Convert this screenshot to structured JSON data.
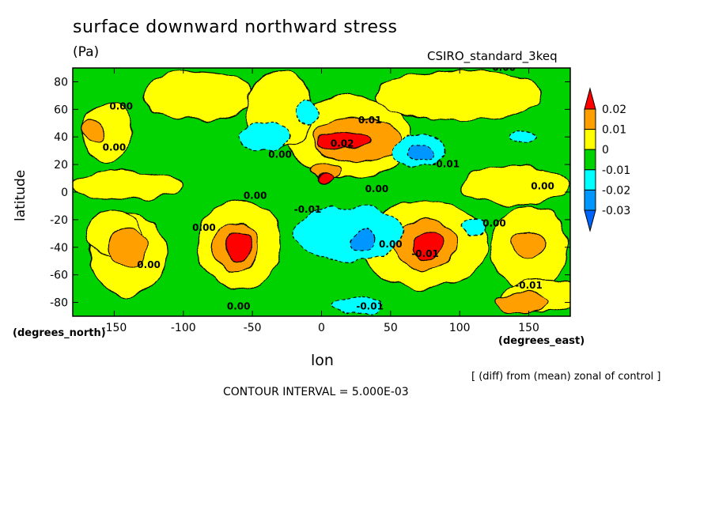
{
  "chart_data": {
    "type": "heatmap",
    "title": "surface downward northward stress",
    "units": "(Pa)",
    "dataset": "CSIRO_standard_3keq",
    "xlabel": "lon",
    "ylabel": "latitude",
    "xunits": "(degrees_east)",
    "yunits": "(degrees_north)",
    "note": "[ (diff) from (mean) zonal of control ]",
    "contour_interval": "CONTOUR INTERVAL = 5.000E-03",
    "xlim": [
      -180,
      180
    ],
    "ylim": [
      -90,
      90
    ],
    "xticks": [
      "-150",
      "-100",
      "-50",
      "0",
      "50",
      "100",
      "150"
    ],
    "xtick_values": [
      -150,
      -100,
      -50,
      0,
      50,
      100,
      150
    ],
    "yticks": [
      "-80",
      "-60",
      "-40",
      "-20",
      "0",
      "20",
      "40",
      "60",
      "80"
    ],
    "ytick_values": [
      -80,
      -60,
      -40,
      -20,
      0,
      20,
      40,
      60,
      80
    ],
    "colorbar": {
      "labels": [
        "0.02",
        "0.01",
        "0",
        "-0.01",
        "-0.02",
        "-0.03"
      ],
      "colors": [
        "#ff0000",
        "#ffa000",
        "#ffff00",
        "#00d200",
        "#00ffff",
        "#0096ff"
      ],
      "top_arrow": "#ff0000",
      "bottom_arrow": "#0064ff"
    },
    "background_color": "#00d200",
    "fields": [
      {
        "level": "0.005",
        "color": "#ffff00",
        "lon": -140,
        "lat": -45,
        "rx": 28,
        "ry": 30
      },
      {
        "level": "0.005",
        "color": "#ffff00",
        "lon": -150,
        "lat": -30,
        "rx": 20,
        "ry": 16
      },
      {
        "level": "0.005",
        "color": "#ffff00",
        "lon": -60,
        "lat": -38,
        "rx": 30,
        "ry": 32
      },
      {
        "level": "0.005",
        "color": "#ffff00",
        "lon": 20,
        "lat": 40,
        "rx": 45,
        "ry": 30
      },
      {
        "level": "0.005",
        "color": "#ffff00",
        "lon": 75,
        "lat": -38,
        "rx": 45,
        "ry": 32
      },
      {
        "level": "0.005",
        "color": "#ffff00",
        "lon": 150,
        "lat": -40,
        "rx": 28,
        "ry": 30
      },
      {
        "level": "0.005",
        "color": "#ffff00",
        "lon": -90,
        "lat": 70,
        "rx": 40,
        "ry": 18
      },
      {
        "level": "0.005",
        "color": "#ffff00",
        "lon": 100,
        "lat": 70,
        "rx": 60,
        "ry": 18
      },
      {
        "level": "0.005",
        "color": "#ffff00",
        "lon": -30,
        "lat": 60,
        "rx": 25,
        "ry": 28
      },
      {
        "level": "0.005",
        "color": "#ffff00",
        "lon": 140,
        "lat": 5,
        "rx": 40,
        "ry": 14
      },
      {
        "level": "0.005",
        "color": "#ffff00",
        "lon": -140,
        "lat": 5,
        "rx": 40,
        "ry": 10
      },
      {
        "level": "0.005",
        "color": "#ffff00",
        "lon": 160,
        "lat": -75,
        "rx": 30,
        "ry": 12
      },
      {
        "level": "0.005",
        "color": "#ffff00",
        "lon": -155,
        "lat": 43,
        "rx": 18,
        "ry": 22
      },
      {
        "level": "0.01",
        "color": "#ffa000",
        "lon": -140,
        "lat": -40,
        "rx": 14,
        "ry": 14
      },
      {
        "level": "0.01",
        "color": "#ffa000",
        "lon": -62,
        "lat": -40,
        "rx": 16,
        "ry": 18
      },
      {
        "level": "0.01",
        "color": "#ffa000",
        "lon": 25,
        "lat": 38,
        "rx": 32,
        "ry": 16
      },
      {
        "level": "0.01",
        "color": "#ffa000",
        "lon": 75,
        "lat": -38,
        "rx": 22,
        "ry": 18
      },
      {
        "level": "0.01",
        "color": "#ffa000",
        "lon": 145,
        "lat": -80,
        "rx": 18,
        "ry": 7
      },
      {
        "level": "0.01",
        "color": "#ffa000",
        "lon": -165,
        "lat": 45,
        "rx": 8,
        "ry": 8
      },
      {
        "level": "0.01",
        "color": "#ffa000",
        "lon": 3,
        "lat": 15,
        "rx": 10,
        "ry": 6
      },
      {
        "level": "0.01",
        "color": "#ffa000",
        "lon": 150,
        "lat": -38,
        "rx": 12,
        "ry": 10
      },
      {
        "level": "0.02",
        "color": "#ff0000",
        "lon": 15,
        "lat": 37,
        "rx": 20,
        "ry": 7
      },
      {
        "level": "0.02",
        "color": "#ff0000",
        "lon": -60,
        "lat": -40,
        "rx": 9,
        "ry": 11
      },
      {
        "level": "0.02",
        "color": "#ff0000",
        "lon": 77,
        "lat": -38,
        "rx": 11,
        "ry": 10
      },
      {
        "level": "0.02",
        "color": "#ff0000",
        "lon": 3,
        "lat": 10,
        "rx": 6,
        "ry": 3
      },
      {
        "level": "-0.005",
        "color": "#00ffff",
        "lon": -40,
        "lat": 40,
        "rx": 18,
        "ry": 10
      },
      {
        "level": "-0.005",
        "color": "#00ffff",
        "lon": 70,
        "lat": 30,
        "rx": 20,
        "ry": 12
      },
      {
        "level": "-0.005",
        "color": "#00ffff",
        "lon": 20,
        "lat": -30,
        "rx": 40,
        "ry": 20
      },
      {
        "level": "-0.005",
        "color": "#00ffff",
        "lon": 25,
        "lat": -82,
        "rx": 18,
        "ry": 6
      },
      {
        "level": "-0.005",
        "color": "#00ffff",
        "lon": -10,
        "lat": 58,
        "rx": 8,
        "ry": 10
      },
      {
        "level": "-0.005",
        "color": "#00ffff",
        "lon": 145,
        "lat": 40,
        "rx": 10,
        "ry": 5
      },
      {
        "level": "-0.005",
        "color": "#00ffff",
        "lon": 110,
        "lat": -25,
        "rx": 8,
        "ry": 5
      },
      {
        "level": "-0.015",
        "color": "#0096ff",
        "lon": 72,
        "lat": 28,
        "rx": 10,
        "ry": 6
      },
      {
        "level": "-0.015",
        "color": "#0096ff",
        "lon": 30,
        "lat": -35,
        "rx": 8,
        "ry": 8
      }
    ],
    "contour_labels": [
      {
        "text": "0.00",
        "lon": -145,
        "lat": 60
      },
      {
        "text": "0.00",
        "lon": -150,
        "lat": 30
      },
      {
        "text": "0.00",
        "lon": -30,
        "lat": 25
      },
      {
        "text": "0.00",
        "lon": -48,
        "lat": -5
      },
      {
        "text": "0.00",
        "lon": -85,
        "lat": -28
      },
      {
        "text": "0.00",
        "lon": -125,
        "lat": -55
      },
      {
        "text": "0.00",
        "lon": 40,
        "lat": 0
      },
      {
        "text": "0.00",
        "lon": 50,
        "lat": -40
      },
      {
        "text": "0.00",
        "lon": 125,
        "lat": -25
      },
      {
        "text": "0.00",
        "lon": 160,
        "lat": 2
      },
      {
        "text": "0.00",
        "lon": -60,
        "lat": -85
      },
      {
        "text": "0.00",
        "lon": 132,
        "lat": 88
      },
      {
        "text": "0.01",
        "lon": 35,
        "lat": 50
      },
      {
        "text": "0.02",
        "lon": 15,
        "lat": 33
      },
      {
        "text": "-0.01",
        "lon": -10,
        "lat": -15
      },
      {
        "text": "-0.01",
        "lon": 90,
        "lat": 18
      },
      {
        "text": "-0.01",
        "lon": 75,
        "lat": -47
      },
      {
        "text": "-0.01",
        "lon": 35,
        "lat": -85
      },
      {
        "text": "-0.01",
        "lon": 150,
        "lat": -70
      }
    ]
  }
}
